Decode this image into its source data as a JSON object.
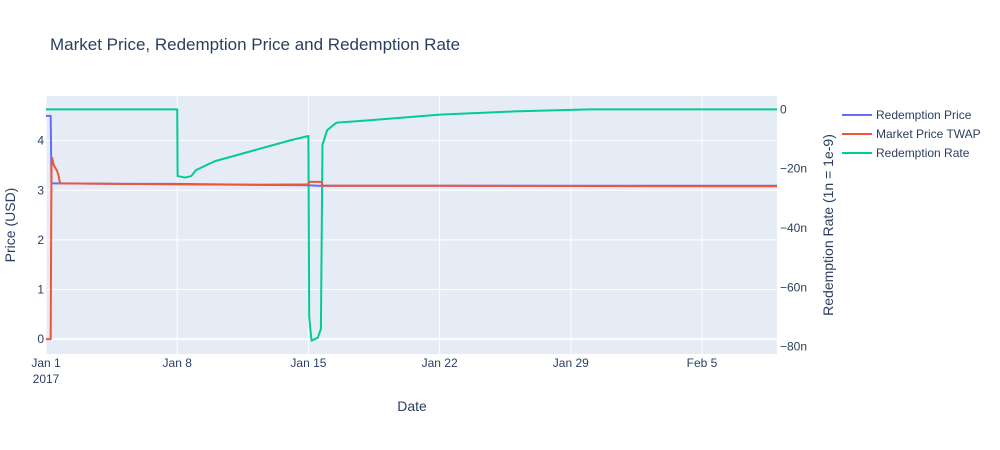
{
  "chart_data": {
    "type": "line",
    "title": "Market Price, Redemption Price and Redemption Rate",
    "xlabel": "Date",
    "ylabel_left": "Price (USD)",
    "ylabel_right": "Redemption Rate (1n = 1e-9)",
    "x_range": [
      "2017-01-01",
      "2017-02-09"
    ],
    "y_left_range": [
      -0.3,
      4.9
    ],
    "y_right_range": [
      -82.5,
      4.5
    ],
    "x_ticks": [
      {
        "date": "2017-01-01",
        "label": "Jan 1",
        "sublabel": "2017"
      },
      {
        "date": "2017-01-08",
        "label": "Jan 8"
      },
      {
        "date": "2017-01-15",
        "label": "Jan 15"
      },
      {
        "date": "2017-01-22",
        "label": "Jan 22"
      },
      {
        "date": "2017-01-29",
        "label": "Jan 29"
      },
      {
        "date": "2017-02-05",
        "label": "Feb 5"
      }
    ],
    "y_left_ticks": [
      {
        "value": 0,
        "label": "0"
      },
      {
        "value": 1,
        "label": "1"
      },
      {
        "value": 2,
        "label": "2"
      },
      {
        "value": 3,
        "label": "3"
      },
      {
        "value": 4,
        "label": "4"
      }
    ],
    "y_right_ticks": [
      {
        "value": 0,
        "label": "0"
      },
      {
        "value": -20,
        "label": "−20n"
      },
      {
        "value": -40,
        "label": "−40n"
      },
      {
        "value": -60,
        "label": "−60n"
      },
      {
        "value": -80,
        "label": "−80n"
      }
    ],
    "grid": true,
    "legend_position": "right",
    "series": [
      {
        "name": "Redemption Price",
        "axis": "left",
        "color": "#636efa",
        "points": [
          [
            "2017-01-01 00:00",
            4.5
          ],
          [
            "2017-01-01 06:00",
            4.5
          ],
          [
            "2017-01-01 07:00",
            3.14
          ],
          [
            "2017-01-02",
            3.14
          ],
          [
            "2017-01-05",
            3.13
          ],
          [
            "2017-01-08",
            3.13
          ],
          [
            "2017-01-12",
            3.11
          ],
          [
            "2017-01-15",
            3.1
          ],
          [
            "2017-01-15 12:00",
            3.09
          ],
          [
            "2017-01-22",
            3.09
          ],
          [
            "2017-01-29",
            3.09
          ],
          [
            "2017-02-05",
            3.09
          ],
          [
            "2017-02-09",
            3.09
          ]
        ]
      },
      {
        "name": "Market Price TWAP",
        "axis": "left",
        "color": "#ef553b",
        "points": [
          [
            "2017-01-01",
            0.0
          ],
          [
            "2017-01-01 06:00",
            0.0
          ],
          [
            "2017-01-01 07:00",
            3.5
          ],
          [
            "2017-01-01 08:00",
            3.65
          ],
          [
            "2017-01-01 10:00",
            3.5
          ],
          [
            "2017-01-01 12:00",
            3.45
          ],
          [
            "2017-01-01 14:00",
            3.4
          ],
          [
            "2017-01-01 16:00",
            3.3
          ],
          [
            "2017-01-01 18:00",
            3.14
          ],
          [
            "2017-01-05",
            3.13
          ],
          [
            "2017-01-08",
            3.12
          ],
          [
            "2017-01-12",
            3.11
          ],
          [
            "2017-01-15",
            3.12
          ],
          [
            "2017-01-15 01:00",
            3.17
          ],
          [
            "2017-01-15 17:00",
            3.17
          ],
          [
            "2017-01-15 18:00",
            3.09
          ],
          [
            "2017-01-22",
            3.09
          ],
          [
            "2017-02-09",
            3.08
          ]
        ]
      },
      {
        "name": "Redemption Rate",
        "axis": "right",
        "color": "#00cc96",
        "points": [
          [
            "2017-01-01",
            0.0
          ],
          [
            "2017-01-08",
            0.0
          ],
          [
            "2017-01-08 00:30",
            -22.5
          ],
          [
            "2017-01-08 10:00",
            -23.0
          ],
          [
            "2017-01-08 18:00",
            -22.5
          ],
          [
            "2017-01-09",
            -20.5
          ],
          [
            "2017-01-10",
            -17.5
          ],
          [
            "2017-01-12",
            -14.0
          ],
          [
            "2017-01-14",
            -10.5
          ],
          [
            "2017-01-15",
            -9.0
          ],
          [
            "2017-01-15 01:00",
            -70.0
          ],
          [
            "2017-01-15 04:00",
            -78.0
          ],
          [
            "2017-01-15 12:00",
            -77.0
          ],
          [
            "2017-01-15 16:00",
            -74.0
          ],
          [
            "2017-01-15 18:00",
            -12.0
          ],
          [
            "2017-01-16",
            -7.0
          ],
          [
            "2017-01-16 12:00",
            -4.5
          ],
          [
            "2017-01-18",
            -3.8
          ],
          [
            "2017-01-22",
            -1.8
          ],
          [
            "2017-01-26",
            -0.7
          ],
          [
            "2017-01-30",
            0.0
          ],
          [
            "2017-02-09",
            0.0
          ]
        ]
      }
    ]
  }
}
